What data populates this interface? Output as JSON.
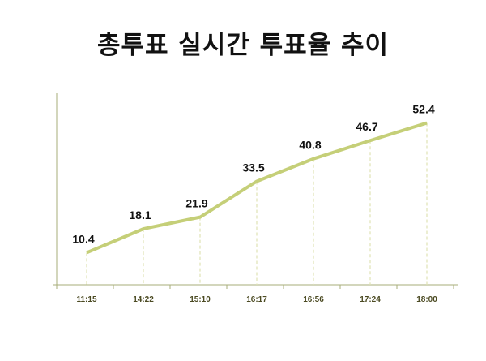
{
  "title": "총투표 실시간 투표율 추이",
  "colors": {
    "line": "#c5cf78",
    "axis": "#a7ad78",
    "guide": "#dfe3b4",
    "tick_text": "#4b4a22"
  },
  "chart_data": {
    "type": "line",
    "title": "총투표 실시간 투표율 추이",
    "xlabel": "",
    "ylabel": "",
    "categories": [
      "11:15",
      "14:22",
      "15:10",
      "16:17",
      "16:56",
      "17:24",
      "18:00"
    ],
    "values": [
      10.4,
      18.1,
      21.9,
      33.5,
      40.8,
      46.7,
      52.4
    ],
    "labels": [
      "10.4",
      "18.1",
      "21.9",
      "33.5",
      "40.8",
      "46.7",
      "52.4"
    ],
    "ylim": [
      0,
      62
    ],
    "grid": false,
    "legend": "none",
    "data_labels": true
  }
}
